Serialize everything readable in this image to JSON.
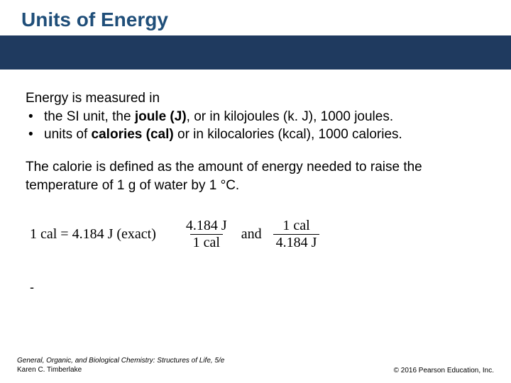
{
  "colors": {
    "title_color": "#1f4e79",
    "bar_color": "#1f3a5f",
    "background": "#ffffff",
    "text_color": "#000000"
  },
  "title": "Units of Energy",
  "intro": "Energy is measured in",
  "bullets": [
    {
      "pre": "the SI unit, the ",
      "bold": "joule (J)",
      "post": ", or in kilojoules (k. J), 1000 joules."
    },
    {
      "pre": "units of ",
      "bold": "calories (cal)",
      "post": " or in kilocalories (kcal), 1000 calories."
    }
  ],
  "paragraph2": "The calorie is defined as the amount of energy needed to raise the temperature of 1 g of water by 1 °C.",
  "equation": {
    "left": "1 cal = 4.184 J (exact)",
    "frac1_num": "4.184 J",
    "frac1_den": "1 cal",
    "and": "and",
    "frac2_num": "1 cal",
    "frac2_den": "4.184 J"
  },
  "dash": "-",
  "footer": {
    "book": "General, Organic, and Biological Chemistry: Structures of Life, 5/e",
    "author": "Karen C. Timberlake",
    "copyright": "© 2016 Pearson Education, Inc."
  }
}
